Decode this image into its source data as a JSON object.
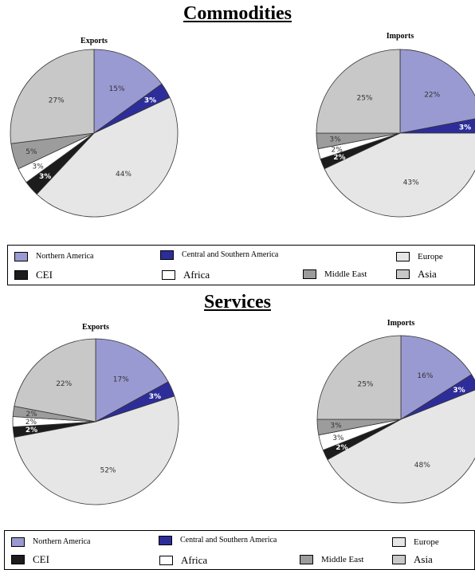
{
  "colors": {
    "Northern America": "#9a9ad2",
    "Central and Southern America": "#2d2d9a",
    "Europe": "#e6e6e6",
    "CEI": "#1c1c1c",
    "Africa": "#ffffff",
    "Middle East": "#9c9c9c",
    "Asia": "#c8c8c8"
  },
  "legend_items": [
    "Northern America",
    "Central and Southern America",
    "Europe",
    "CEI",
    "Africa",
    "Middle East",
    "Asia"
  ],
  "sections": [
    {
      "title": "Commodities"
    },
    {
      "title": "Services"
    }
  ],
  "chart_data": [
    {
      "type": "pie",
      "section": "Commodities",
      "title": "Exports",
      "slices": [
        {
          "label": "Northern America",
          "value": 15,
          "text": "15%"
        },
        {
          "label": "Central and Southern America",
          "value": 3,
          "text": "3%"
        },
        {
          "label": "Europe",
          "value": 44,
          "text": "44%"
        },
        {
          "label": "CEI",
          "value": 3,
          "text": "3%"
        },
        {
          "label": "Africa",
          "value": 3,
          "text": "3%"
        },
        {
          "label": "Middle East",
          "value": 5,
          "text": "5%"
        },
        {
          "label": "Asia",
          "value": 27,
          "text": "27%"
        }
      ]
    },
    {
      "type": "pie",
      "section": "Commodities",
      "title": "Imports",
      "slices": [
        {
          "label": "Northern America",
          "value": 22,
          "text": "22%"
        },
        {
          "label": "Central and Southern America",
          "value": 3,
          "text": "3%"
        },
        {
          "label": "Europe",
          "value": 43,
          "text": "43%"
        },
        {
          "label": "CEI",
          "value": 2,
          "text": "2%"
        },
        {
          "label": "Africa",
          "value": 2,
          "text": "2%"
        },
        {
          "label": "Middle East",
          "value": 3,
          "text": "3%"
        },
        {
          "label": "Asia",
          "value": 25,
          "text": "25%"
        }
      ]
    },
    {
      "type": "pie",
      "section": "Services",
      "title": "Exports",
      "slices": [
        {
          "label": "Northern America",
          "value": 17,
          "text": "17%"
        },
        {
          "label": "Central and Southern America",
          "value": 3,
          "text": "3%"
        },
        {
          "label": "Europe",
          "value": 52,
          "text": "52%"
        },
        {
          "label": "CEI",
          "value": 2,
          "text": "2%"
        },
        {
          "label": "Africa",
          "value": 2,
          "text": "2%"
        },
        {
          "label": "Middle East",
          "value": 2,
          "text": "2%"
        },
        {
          "label": "Asia",
          "value": 22,
          "text": "22%"
        }
      ]
    },
    {
      "type": "pie",
      "section": "Services",
      "title": "Imports",
      "slices": [
        {
          "label": "Northern America",
          "value": 16,
          "text": "16%"
        },
        {
          "label": "Central and Southern America",
          "value": 3,
          "text": "3%"
        },
        {
          "label": "Europe",
          "value": 48,
          "text": "48%"
        },
        {
          "label": "CEI",
          "value": 2,
          "text": "2%"
        },
        {
          "label": "Africa",
          "value": 3,
          "text": "3%"
        },
        {
          "label": "Middle East",
          "value": 3,
          "text": "3%"
        },
        {
          "label": "Asia",
          "value": 25,
          "text": "25%"
        }
      ]
    }
  ]
}
